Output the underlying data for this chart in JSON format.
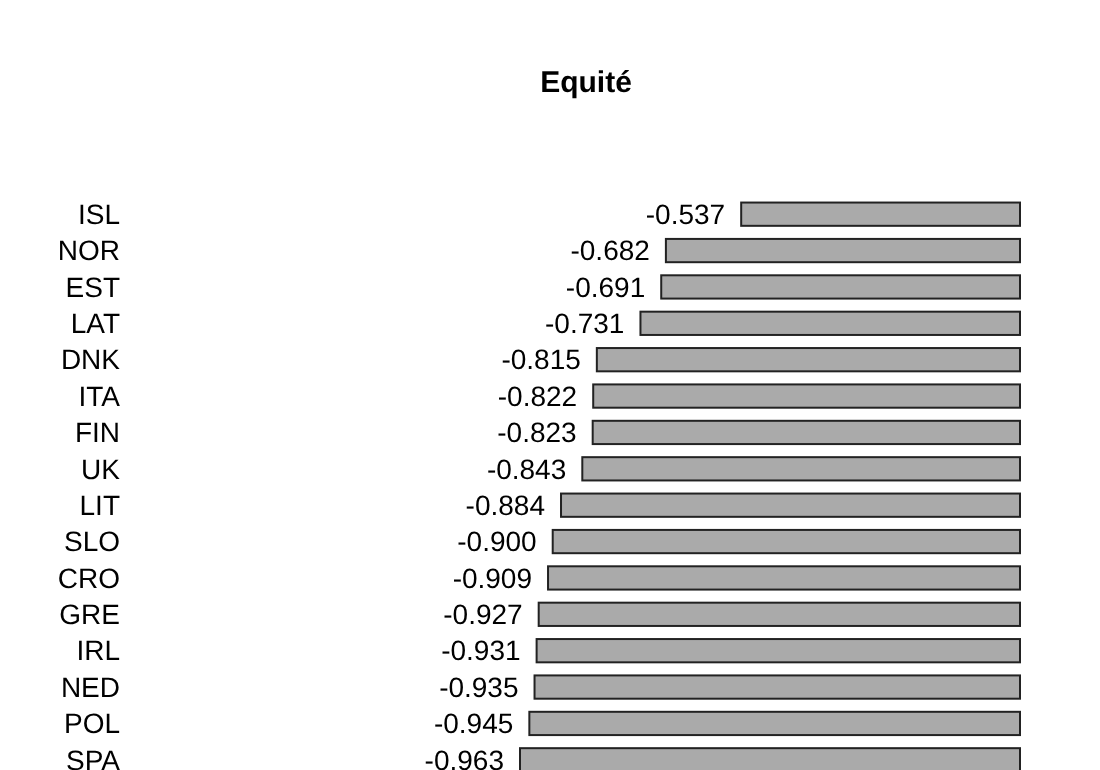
{
  "chart_data": {
    "type": "bar",
    "title": "Equité",
    "orientation": "horizontal",
    "categories": [
      "ISL",
      "NOR",
      "EST",
      "LAT",
      "DNK",
      "ITA",
      "FIN",
      "UK",
      "LIT",
      "SLO",
      "CRO",
      "GRE",
      "IRL",
      "NED",
      "POL",
      "SPA"
    ],
    "values": [
      -0.537,
      -0.682,
      -0.691,
      -0.731,
      -0.815,
      -0.822,
      -0.823,
      -0.843,
      -0.884,
      -0.9,
      -0.909,
      -0.927,
      -0.931,
      -0.935,
      -0.945,
      -0.963
    ],
    "value_labels": [
      "-0.537",
      "-0.682",
      "-0.691",
      "-0.731",
      "-0.815",
      "-0.822",
      "-0.823",
      "-0.843",
      "-0.884",
      "-0.900",
      "-0.909",
      "-0.927",
      "-0.931",
      "-0.935",
      "-0.945",
      "-0.963"
    ],
    "color": "#aaaaaa",
    "tick_labels": "y"
  }
}
